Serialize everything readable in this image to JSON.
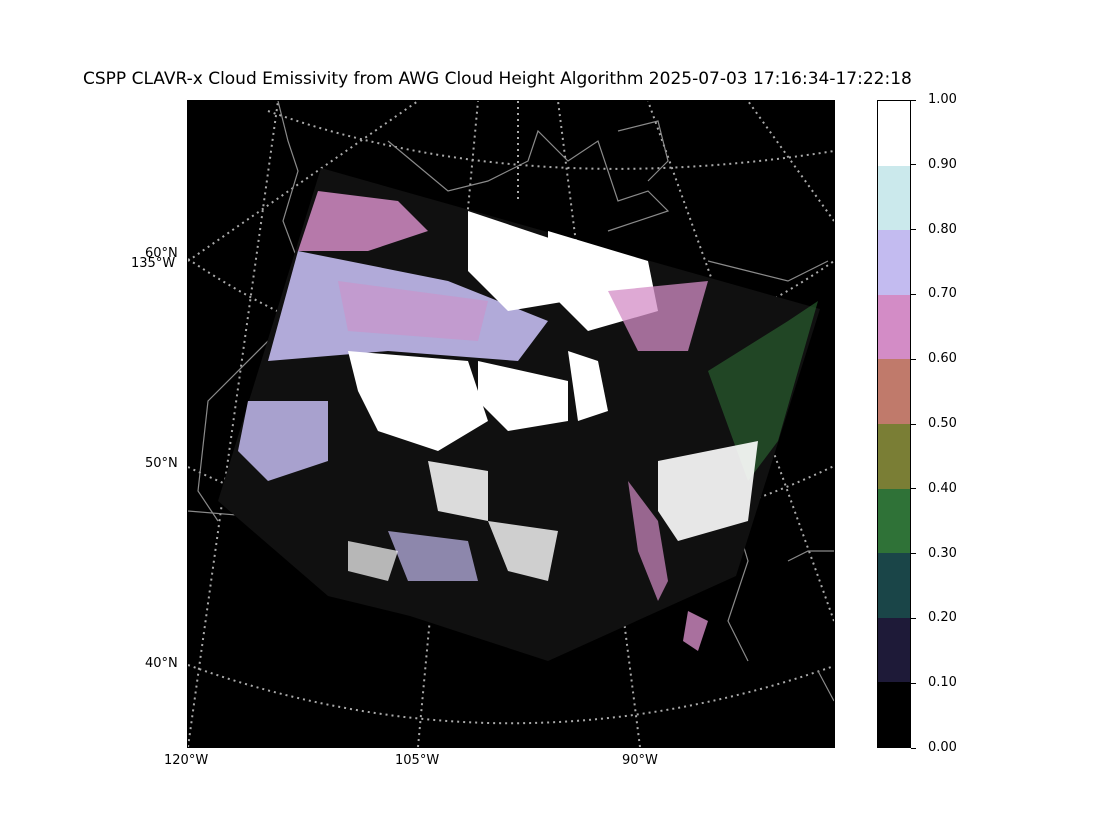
{
  "title": "CSPP CLAVR-x Cloud Emissivity from AWG Cloud Height Algorithm 2025-07-03 17:16:34-17:22:18",
  "map": {
    "lat_labels": [
      "60°N",
      "50°N",
      "40°N"
    ],
    "lon_labels_left": [
      "135°W"
    ],
    "lon_labels_bottom": [
      "120°W",
      "105°W",
      "90°W"
    ],
    "background_color": "#000000",
    "gridline_color": "#aaaaaa",
    "coastline_color": "#8a8a8a"
  },
  "colorbar": {
    "ticks": [
      "0.00",
      "0.10",
      "0.20",
      "0.30",
      "0.40",
      "0.50",
      "0.60",
      "0.70",
      "0.80",
      "0.90",
      "1.00"
    ],
    "colors": [
      "#000000",
      "#1e1a38",
      "#1a4548",
      "#2f7237",
      "#7a7e35",
      "#c07a6b",
      "#d38cc6",
      "#c3bbf0",
      "#cbe9ec",
      "#ffffff"
    ]
  }
}
